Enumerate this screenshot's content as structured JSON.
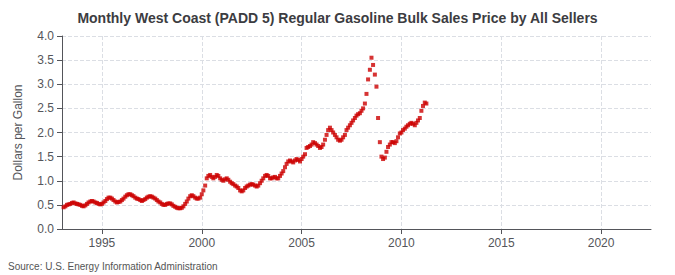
{
  "chart_data": {
    "type": "scatter",
    "title": "Monthly West Coast (PADD 5) Regular Gasoline Bulk Sales Price by All Sellers",
    "ylabel": "Dollars per Gallon",
    "annotations": [
      "Source: U.S. Energy Information Administration"
    ],
    "color": "#cc0000",
    "marker": "square",
    "grid": true,
    "xlim": [
      1993.0,
      2022.5
    ],
    "xticks": [
      1995,
      2000,
      2005,
      2010,
      2015,
      2020
    ],
    "ylim": [
      0.0,
      4.0
    ],
    "yticks": [
      {
        "value": 0.0,
        "label": "0.0"
      },
      0.5,
      {
        "value": 1.0,
        "label": "1.0"
      },
      1.5,
      {
        "value": 2.0,
        "label": "2.0"
      },
      2.5,
      {
        "value": 3.0,
        "label": "3.0"
      },
      3.5,
      {
        "value": 4.0,
        "label": "4.0"
      }
    ],
    "x": [
      1993.08,
      1993.17,
      1993.25,
      1993.33,
      1993.42,
      1993.5,
      1993.58,
      1993.67,
      1993.75,
      1993.83,
      1993.92,
      1994.0,
      1994.08,
      1994.17,
      1994.25,
      1994.33,
      1994.42,
      1994.5,
      1994.58,
      1994.67,
      1994.75,
      1994.83,
      1994.92,
      1995.0,
      1995.08,
      1995.17,
      1995.25,
      1995.33,
      1995.42,
      1995.5,
      1995.58,
      1995.67,
      1995.75,
      1995.83,
      1995.92,
      1996.0,
      1996.08,
      1996.17,
      1996.25,
      1996.33,
      1996.42,
      1996.5,
      1996.58,
      1996.67,
      1996.75,
      1996.83,
      1996.92,
      1997.0,
      1997.08,
      1997.17,
      1997.25,
      1997.33,
      1997.42,
      1997.5,
      1997.58,
      1997.67,
      1997.75,
      1997.83,
      1997.92,
      1998.0,
      1998.08,
      1998.17,
      1998.25,
      1998.33,
      1998.42,
      1998.5,
      1998.58,
      1998.67,
      1998.75,
      1998.83,
      1998.92,
      1999.0,
      1999.08,
      1999.17,
      1999.25,
      1999.33,
      1999.42,
      1999.5,
      1999.58,
      1999.67,
      1999.75,
      1999.83,
      1999.92,
      2000.0,
      2000.08,
      2000.17,
      2000.25,
      2000.33,
      2000.42,
      2000.5,
      2000.58,
      2000.67,
      2000.75,
      2000.83,
      2000.92,
      2001.0,
      2001.08,
      2001.17,
      2001.25,
      2001.33,
      2001.42,
      2001.5,
      2001.58,
      2001.67,
      2001.75,
      2001.83,
      2001.92,
      2002.0,
      2002.08,
      2002.17,
      2002.25,
      2002.33,
      2002.42,
      2002.5,
      2002.58,
      2002.67,
      2002.75,
      2002.83,
      2002.92,
      2003.0,
      2003.08,
      2003.17,
      2003.25,
      2003.33,
      2003.42,
      2003.5,
      2003.58,
      2003.67,
      2003.75,
      2003.83,
      2003.92,
      2004.0,
      2004.08,
      2004.17,
      2004.25,
      2004.33,
      2004.42,
      2004.5,
      2004.58,
      2004.67,
      2004.75,
      2004.83,
      2004.92,
      2005.0,
      2005.08,
      2005.17,
      2005.25,
      2005.33,
      2005.42,
      2005.5,
      2005.58,
      2005.67,
      2005.75,
      2005.83,
      2005.92,
      2006.0,
      2006.08,
      2006.17,
      2006.25,
      2006.33,
      2006.42,
      2006.5,
      2006.58,
      2006.67,
      2006.75,
      2006.83,
      2006.92,
      2007.0,
      2007.08,
      2007.17,
      2007.25,
      2007.33,
      2007.42,
      2007.5,
      2007.58,
      2007.67,
      2007.75,
      2007.83,
      2007.92,
      2008.0,
      2008.08,
      2008.17,
      2008.25,
      2008.33,
      2008.42,
      2008.5,
      2008.58,
      2008.67,
      2008.75,
      2008.83,
      2008.92,
      2009.0,
      2009.08,
      2009.17,
      2009.25,
      2009.33,
      2009.42,
      2009.5,
      2009.58,
      2009.67,
      2009.75,
      2009.83,
      2009.92,
      2010.0,
      2010.08,
      2010.17,
      2010.25,
      2010.33,
      2010.42,
      2010.5,
      2010.58,
      2010.67,
      2010.75,
      2010.83,
      2010.92,
      2011.0,
      2011.08,
      2011.17,
      2011.25
    ],
    "values": [
      0.45,
      0.47,
      0.5,
      0.51,
      0.52,
      0.54,
      0.55,
      0.53,
      0.52,
      0.51,
      0.5,
      0.48,
      0.47,
      0.49,
      0.52,
      0.55,
      0.57,
      0.58,
      0.57,
      0.55,
      0.54,
      0.52,
      0.51,
      0.52,
      0.55,
      0.58,
      0.62,
      0.65,
      0.65,
      0.63,
      0.6,
      0.57,
      0.55,
      0.56,
      0.57,
      0.6,
      0.63,
      0.67,
      0.7,
      0.72,
      0.72,
      0.7,
      0.68,
      0.65,
      0.63,
      0.62,
      0.6,
      0.58,
      0.6,
      0.62,
      0.65,
      0.67,
      0.68,
      0.67,
      0.65,
      0.63,
      0.6,
      0.57,
      0.55,
      0.52,
      0.5,
      0.5,
      0.52,
      0.53,
      0.53,
      0.51,
      0.48,
      0.46,
      0.44,
      0.43,
      0.43,
      0.44,
      0.47,
      0.52,
      0.57,
      0.63,
      0.68,
      0.7,
      0.68,
      0.65,
      0.63,
      0.63,
      0.65,
      0.72,
      0.8,
      0.9,
      1.05,
      1.1,
      1.12,
      1.08,
      1.05,
      1.08,
      1.12,
      1.1,
      1.05,
      1.02,
      1.0,
      1.03,
      1.05,
      1.02,
      0.98,
      0.95,
      0.93,
      0.9,
      0.88,
      0.85,
      0.8,
      0.78,
      0.8,
      0.85,
      0.88,
      0.9,
      0.92,
      0.93,
      0.92,
      0.9,
      0.88,
      0.9,
      0.95,
      1.0,
      1.05,
      1.1,
      1.12,
      1.1,
      1.05,
      1.05,
      1.07,
      1.08,
      1.05,
      1.05,
      1.1,
      1.15,
      1.2,
      1.28,
      1.35,
      1.4,
      1.42,
      1.4,
      1.38,
      1.42,
      1.45,
      1.43,
      1.4,
      1.45,
      1.5,
      1.55,
      1.68,
      1.7,
      1.72,
      1.75,
      1.8,
      1.78,
      1.75,
      1.72,
      1.68,
      1.7,
      1.75,
      1.85,
      1.95,
      2.05,
      2.1,
      2.05,
      2.0,
      1.95,
      1.9,
      1.85,
      1.83,
      1.85,
      1.9,
      1.95,
      2.05,
      2.1,
      2.15,
      2.2,
      2.25,
      2.3,
      2.35,
      2.38,
      2.4,
      2.45,
      2.5,
      2.6,
      2.8,
      3.1,
      3.3,
      3.55,
      3.4,
      3.2,
      2.95,
      2.3,
      1.8,
      1.5,
      1.45,
      1.48,
      1.6,
      1.7,
      1.75,
      1.8,
      1.8,
      1.78,
      1.82,
      1.9,
      1.98,
      2.0,
      2.05,
      2.08,
      2.12,
      2.15,
      2.18,
      2.2,
      2.18,
      2.15,
      2.2,
      2.25,
      2.3,
      2.45,
      2.55,
      2.62,
      2.6
    ]
  }
}
